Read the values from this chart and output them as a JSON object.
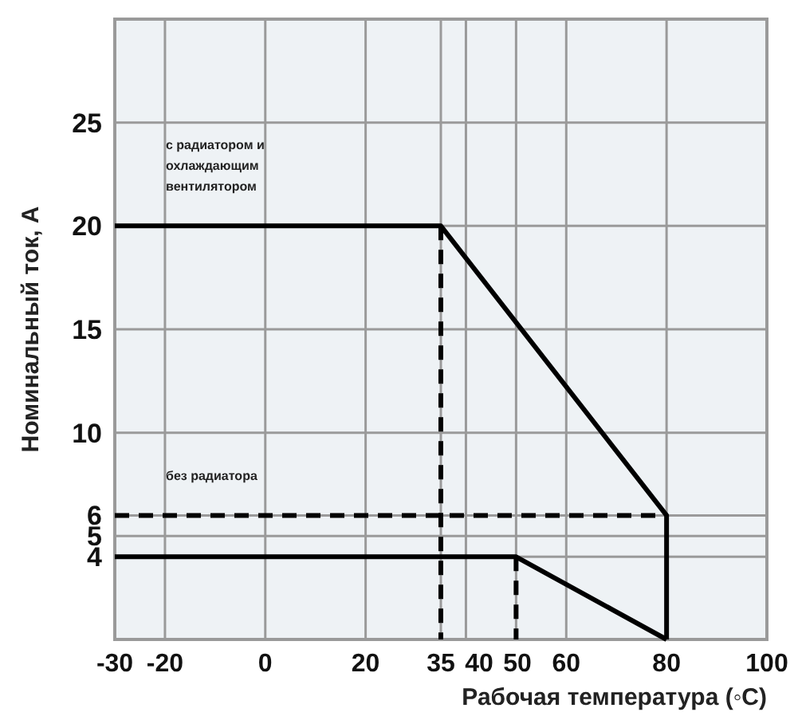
{
  "chart_data": {
    "type": "line",
    "xlabel": "Рабочая температура (◦C)",
    "ylabel": "Номинальный ток, А",
    "xlim": [
      -30,
      100
    ],
    "ylim": [
      0,
      30
    ],
    "xticks": [
      -30,
      -20,
      0,
      20,
      35,
      40,
      50,
      60,
      80,
      100
    ],
    "yticks": [
      4,
      5,
      6,
      10,
      15,
      20,
      25
    ],
    "grid": true,
    "marker": "none",
    "series": [
      {
        "color": "#000000",
        "line_style": "solid",
        "x": [
          -30,
          35,
          80,
          80
        ],
        "values": [
          20,
          20,
          6,
          0
        ]
      },
      {
        "color": "#000000",
        "line_style": "solid",
        "x": [
          -30,
          50,
          80
        ],
        "values": [
          4,
          4,
          0
        ]
      },
      {
        "color": "#000000",
        "line_style": "dashed",
        "x": [
          -30,
          80
        ],
        "values": [
          6,
          6
        ]
      },
      {
        "color": "#000000",
        "line_style": "dashed",
        "x": [
          35,
          35
        ],
        "values": [
          20,
          0
        ]
      },
      {
        "color": "#000000",
        "line_style": "dashed",
        "x": [
          50,
          50
        ],
        "values": [
          4,
          0
        ]
      }
    ],
    "annotations": [
      "с радиатором и охлаждающим вентилятором",
      "без радиатора"
    ]
  }
}
